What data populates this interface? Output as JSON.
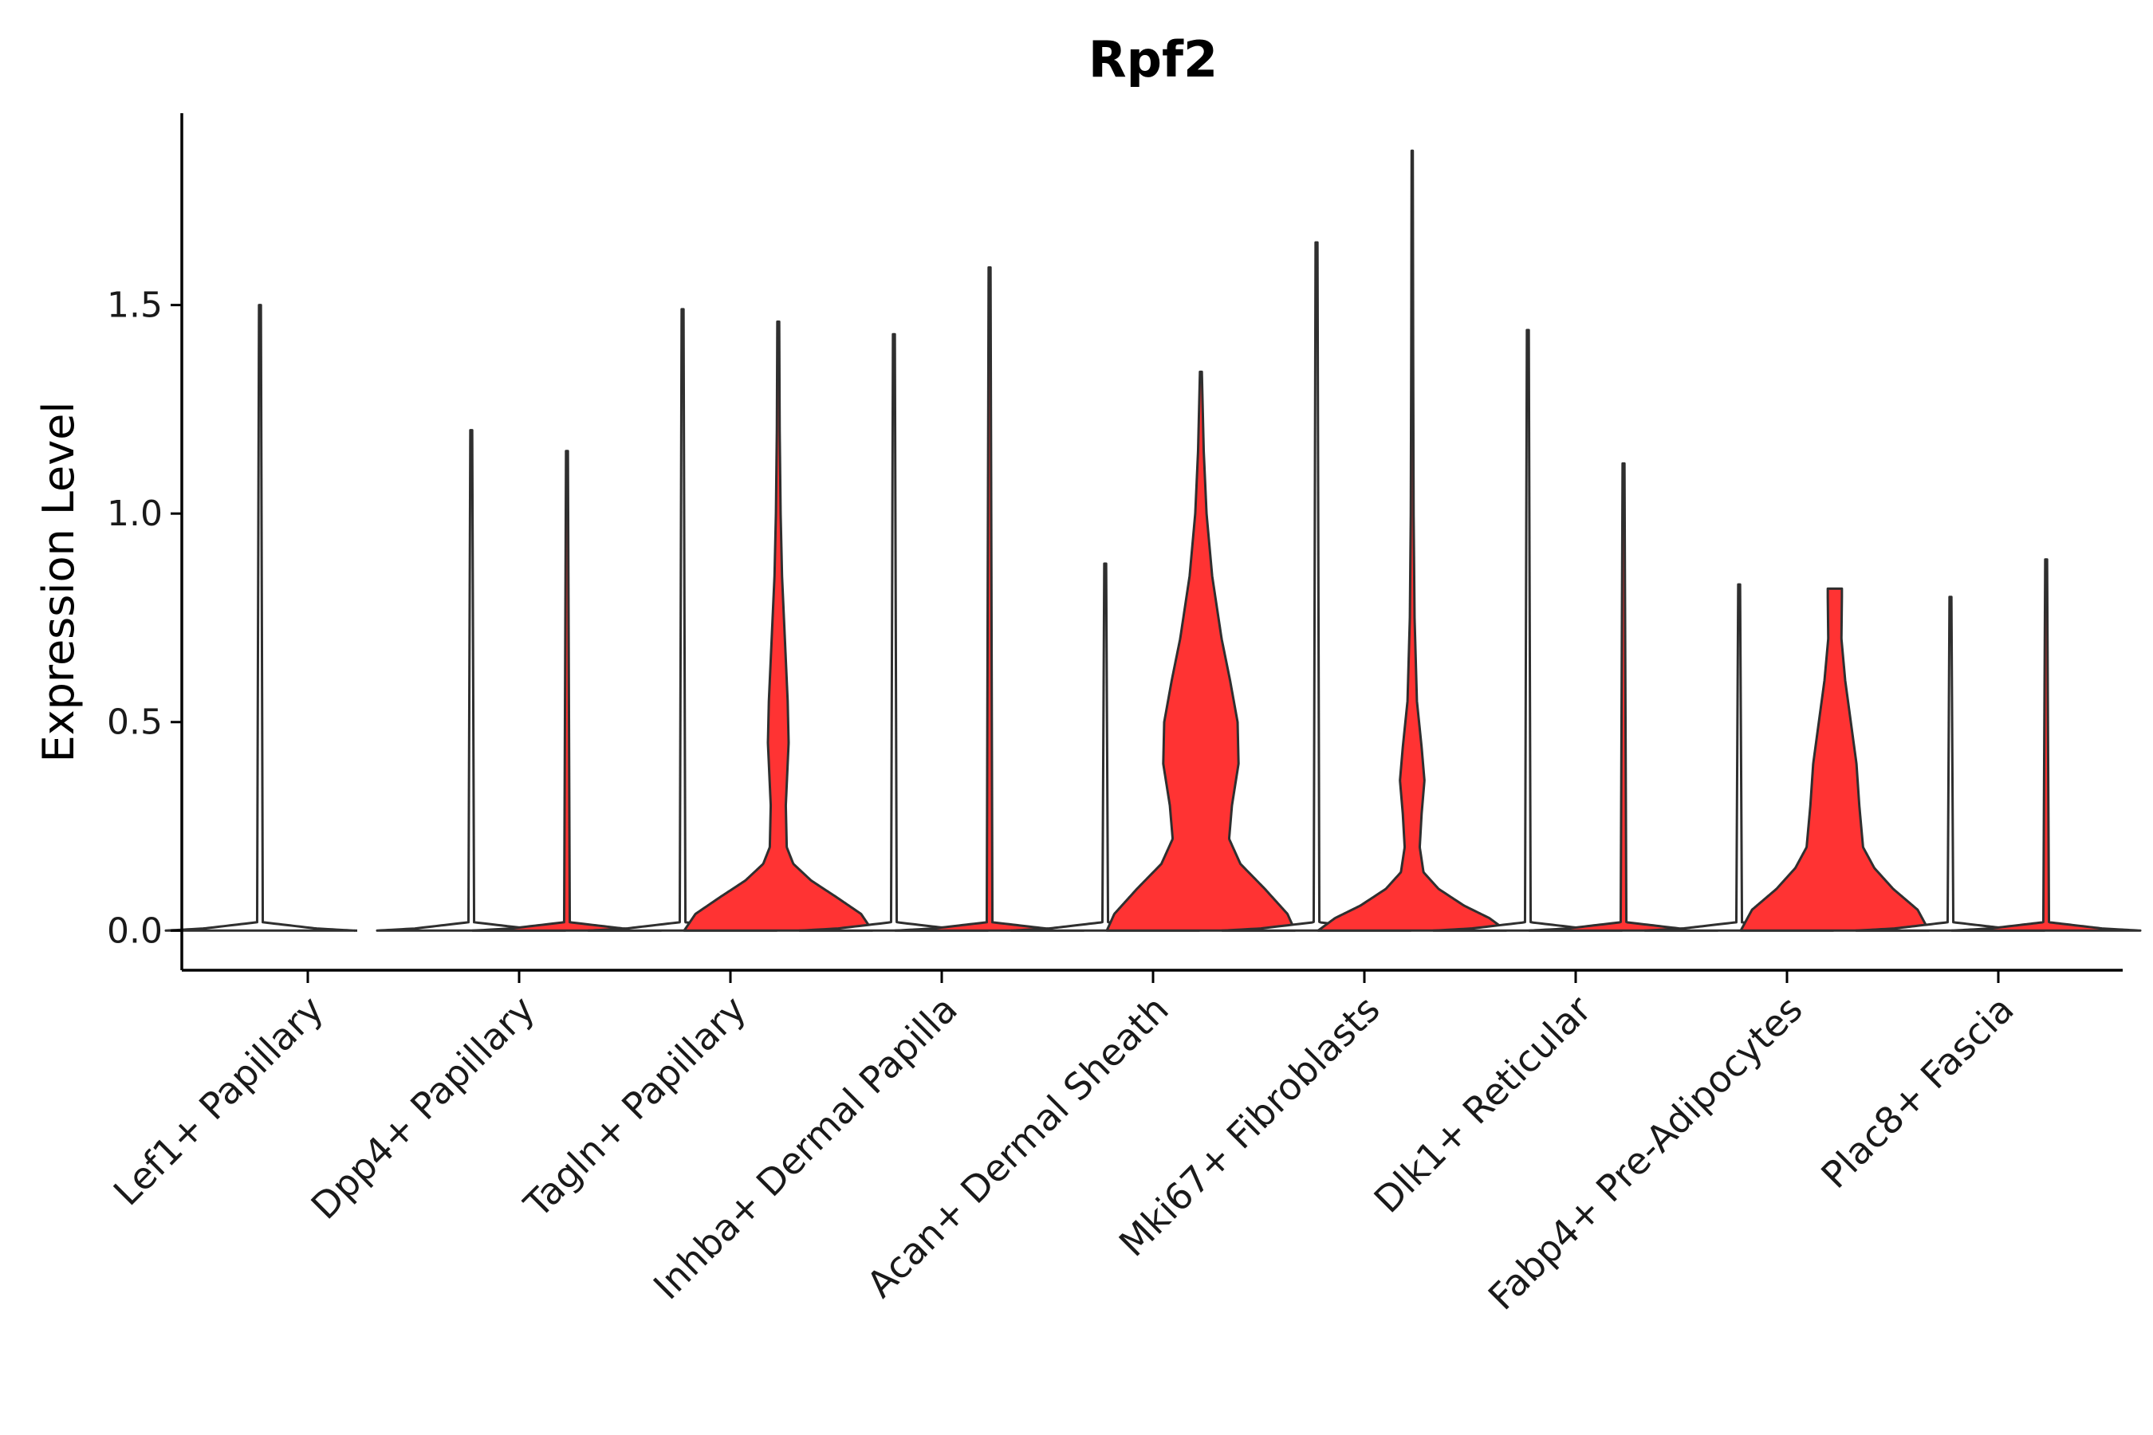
{
  "chart_data": {
    "type": "violin",
    "title": "Rpf2",
    "xlabel": "",
    "ylabel": "Expression Level",
    "ylim": [
      -0.095,
      1.96
    ],
    "yticks": [
      0.0,
      0.5,
      1.0,
      1.5
    ],
    "ytick_labels": [
      "0.0",
      "0.5",
      "1.0",
      "1.5"
    ],
    "categories": [
      "Lef1+ Papillary",
      "Dpp4+ Papillary",
      "Tagln+ Papillary",
      "Inhba+ Dermal Papilla",
      "Acan+ Dermal Sheath",
      "Mki67+ Fibroblasts",
      "Dlk1+ Reticular",
      "Fabp4+ Pre-Adipocytes",
      "Plac8+ Fascia"
    ],
    "fill_colors": {
      "group_a": "#ffffff",
      "group_b": "#ff3333"
    },
    "line_color": "#2f2f2f",
    "violins": [
      {
        "category_index": 0,
        "group": "group_a",
        "max": 1.5,
        "profile": [
          [
            0,
            1.0
          ],
          [
            0.005,
            0.6
          ],
          [
            0.02,
            0.03
          ],
          [
            1.5,
            0.01
          ]
        ]
      },
      {
        "category_index": 0,
        "group": "group_b",
        "max": 0.0,
        "profile": [
          [
            0,
            0.0
          ]
        ]
      },
      {
        "category_index": 1,
        "group": "group_a",
        "max": 1.2,
        "profile": [
          [
            0,
            1.0
          ],
          [
            0.005,
            0.6
          ],
          [
            0.02,
            0.03
          ],
          [
            1.2,
            0.01
          ]
        ]
      },
      {
        "category_index": 1,
        "group": "group_b",
        "max": 1.15,
        "profile": [
          [
            0,
            1.0
          ],
          [
            0.005,
            0.6
          ],
          [
            0.02,
            0.03
          ],
          [
            1.15,
            0.01
          ]
        ]
      },
      {
        "category_index": 2,
        "group": "group_a",
        "max": 1.49,
        "profile": [
          [
            0,
            1.0
          ],
          [
            0.005,
            0.6
          ],
          [
            0.02,
            0.03
          ],
          [
            1.49,
            0.01
          ]
        ]
      },
      {
        "category_index": 2,
        "group": "group_b",
        "max": 1.46,
        "profile": [
          [
            0,
            1.0
          ],
          [
            0.04,
            0.88
          ],
          [
            0.08,
            0.62
          ],
          [
            0.12,
            0.35
          ],
          [
            0.16,
            0.16
          ],
          [
            0.2,
            0.09
          ],
          [
            0.3,
            0.08
          ],
          [
            0.45,
            0.11
          ],
          [
            0.55,
            0.1
          ],
          [
            0.7,
            0.07
          ],
          [
            0.85,
            0.04
          ],
          [
            1.0,
            0.025
          ],
          [
            1.2,
            0.015
          ],
          [
            1.46,
            0.01
          ]
        ]
      },
      {
        "category_index": 3,
        "group": "group_a",
        "max": 1.43,
        "profile": [
          [
            0,
            1.0
          ],
          [
            0.005,
            0.6
          ],
          [
            0.02,
            0.03
          ],
          [
            1.43,
            0.01
          ]
        ]
      },
      {
        "category_index": 3,
        "group": "group_b",
        "max": 1.59,
        "profile": [
          [
            0,
            1.0
          ],
          [
            0.005,
            0.6
          ],
          [
            0.02,
            0.03
          ],
          [
            1.59,
            0.01
          ]
        ]
      },
      {
        "category_index": 4,
        "group": "group_a",
        "max": 0.88,
        "profile": [
          [
            0,
            1.0
          ],
          [
            0.005,
            0.6
          ],
          [
            0.02,
            0.03
          ],
          [
            0.88,
            0.01
          ]
        ]
      },
      {
        "category_index": 4,
        "group": "group_b",
        "max": 1.34,
        "profile": [
          [
            0,
            1.0
          ],
          [
            0.04,
            0.92
          ],
          [
            0.1,
            0.68
          ],
          [
            0.16,
            0.42
          ],
          [
            0.22,
            0.3
          ],
          [
            0.3,
            0.33
          ],
          [
            0.4,
            0.4
          ],
          [
            0.5,
            0.39
          ],
          [
            0.6,
            0.31
          ],
          [
            0.7,
            0.22
          ],
          [
            0.85,
            0.12
          ],
          [
            1.0,
            0.06
          ],
          [
            1.15,
            0.03
          ],
          [
            1.34,
            0.01
          ]
        ]
      },
      {
        "category_index": 5,
        "group": "group_a",
        "max": 1.65,
        "profile": [
          [
            0,
            1.0
          ],
          [
            0.005,
            0.6
          ],
          [
            0.02,
            0.03
          ],
          [
            1.65,
            0.01
          ]
        ]
      },
      {
        "category_index": 5,
        "group": "group_b",
        "max": 1.87,
        "profile": [
          [
            0,
            1.0
          ],
          [
            0.03,
            0.82
          ],
          [
            0.06,
            0.55
          ],
          [
            0.1,
            0.28
          ],
          [
            0.14,
            0.12
          ],
          [
            0.2,
            0.08
          ],
          [
            0.28,
            0.1
          ],
          [
            0.36,
            0.13
          ],
          [
            0.44,
            0.1
          ],
          [
            0.55,
            0.05
          ],
          [
            0.75,
            0.025
          ],
          [
            1.0,
            0.015
          ],
          [
            1.4,
            0.01
          ],
          [
            1.87,
            0.006
          ]
        ]
      },
      {
        "category_index": 6,
        "group": "group_a",
        "max": 1.44,
        "profile": [
          [
            0,
            1.0
          ],
          [
            0.005,
            0.6
          ],
          [
            0.02,
            0.03
          ],
          [
            1.44,
            0.01
          ]
        ]
      },
      {
        "category_index": 6,
        "group": "group_b",
        "max": 1.12,
        "profile": [
          [
            0,
            1.0
          ],
          [
            0.005,
            0.6
          ],
          [
            0.02,
            0.03
          ],
          [
            1.12,
            0.01
          ]
        ]
      },
      {
        "category_index": 7,
        "group": "group_a",
        "max": 0.83,
        "profile": [
          [
            0,
            1.0
          ],
          [
            0.005,
            0.6
          ],
          [
            0.02,
            0.03
          ],
          [
            0.83,
            0.01
          ]
        ]
      },
      {
        "category_index": 7,
        "group": "group_b",
        "max": 0.82,
        "profile": [
          [
            0,
            1.0
          ],
          [
            0.05,
            0.88
          ],
          [
            0.1,
            0.62
          ],
          [
            0.15,
            0.42
          ],
          [
            0.2,
            0.3
          ],
          [
            0.3,
            0.26
          ],
          [
            0.4,
            0.23
          ],
          [
            0.5,
            0.17
          ],
          [
            0.6,
            0.11
          ],
          [
            0.7,
            0.07
          ],
          [
            0.8,
            0.075
          ],
          [
            0.82,
            0.075
          ]
        ]
      },
      {
        "category_index": 8,
        "group": "group_a",
        "max": 0.8,
        "profile": [
          [
            0,
            1.0
          ],
          [
            0.005,
            0.6
          ],
          [
            0.02,
            0.03
          ],
          [
            0.8,
            0.01
          ]
        ]
      },
      {
        "category_index": 8,
        "group": "group_b",
        "max": 0.89,
        "profile": [
          [
            0,
            1.0
          ],
          [
            0.005,
            0.6
          ],
          [
            0.02,
            0.03
          ],
          [
            0.89,
            0.01
          ]
        ]
      }
    ]
  }
}
